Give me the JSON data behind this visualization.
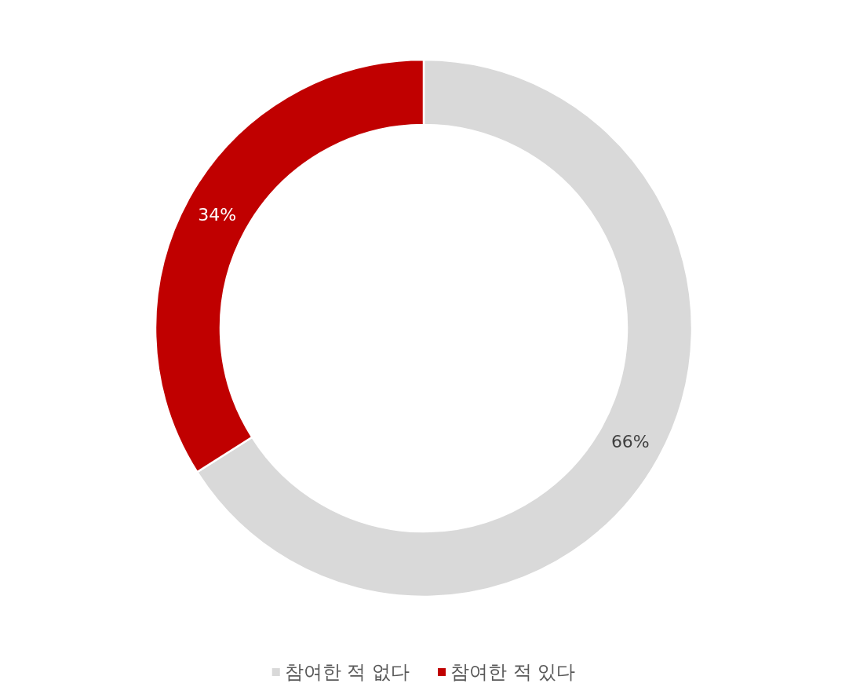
{
  "chart_data": {
    "type": "donut",
    "categories": [
      "참여한 적 없다",
      "참여한 적 있다"
    ],
    "values": [
      66,
      34
    ],
    "colors": [
      "#d9d9d9",
      "#c00000"
    ],
    "value_labels": [
      "66%",
      "34%"
    ],
    "legend": "bottom"
  }
}
